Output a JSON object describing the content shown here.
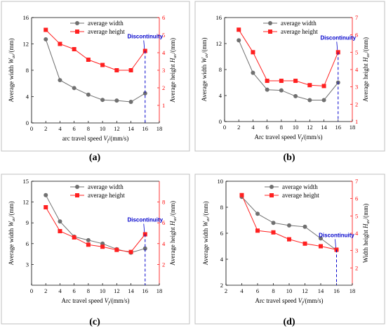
{
  "chart_data": [
    {
      "type": "line",
      "panel_label": "(a)",
      "x": [
        2,
        4,
        6,
        8,
        10,
        12,
        14,
        16
      ],
      "xlim": [
        0,
        18
      ],
      "xticks": [
        0,
        2,
        4,
        6,
        8,
        10,
        12,
        14,
        16,
        18
      ],
      "xlabel": "arc travel speed V_f/(mm/s)",
      "ylabel": "Average width W_av/(mm)",
      "y2label": "Average height H_av/(mm)",
      "ylim": [
        0,
        16
      ],
      "yticks": [
        0,
        4,
        8,
        12,
        16
      ],
      "y2lim": [
        0,
        6
      ],
      "y2ticks": [
        1,
        2,
        3,
        4,
        5,
        6
      ],
      "series": [
        {
          "name": "average width",
          "axis": "left",
          "color": "#707070",
          "marker": "circle",
          "values": [
            12.7,
            6.5,
            5.3,
            4.3,
            3.5,
            3.4,
            3.2,
            4.5
          ]
        },
        {
          "name": "average height",
          "axis": "right",
          "color": "#ff2020",
          "marker": "square",
          "values": [
            5.3,
            4.5,
            4.2,
            3.6,
            3.3,
            3.0,
            3.0,
            4.1
          ]
        }
      ],
      "annotation": {
        "text": "Discontinuity",
        "x": 16
      },
      "legend_position": "top-center",
      "grid": false
    },
    {
      "type": "line",
      "panel_label": "(b)",
      "x": [
        2,
        4,
        6,
        8,
        10,
        12,
        14,
        16
      ],
      "xlim": [
        0,
        18
      ],
      "xticks": [
        0,
        2,
        4,
        6,
        8,
        10,
        12,
        14,
        16,
        18
      ],
      "xlabel": "Arc travel speed V_f/(mm/s)",
      "ylabel": "Average width W_av/(mm)",
      "y2label": "Average height H_av/(mm)",
      "ylim": [
        0,
        16
      ],
      "yticks": [
        0,
        4,
        8,
        12,
        16
      ],
      "y2lim": [
        1,
        7
      ],
      "y2ticks": [
        1,
        2,
        3,
        4,
        5,
        6,
        7
      ],
      "series": [
        {
          "name": "average width",
          "axis": "left",
          "color": "#707070",
          "marker": "circle",
          "values": [
            12.5,
            7.5,
            4.9,
            4.8,
            3.9,
            3.3,
            3.3,
            6.0
          ]
        },
        {
          "name": "average height",
          "axis": "right",
          "color": "#ff2020",
          "marker": "square",
          "values": [
            6.3,
            5.0,
            3.35,
            3.35,
            3.35,
            3.1,
            3.05,
            5.0
          ]
        }
      ],
      "annotation": {
        "text": "Discontinuity",
        "x": 16
      },
      "legend_position": "top-center",
      "grid": false
    },
    {
      "type": "line",
      "panel_label": "(c)",
      "x": [
        2,
        4,
        6,
        8,
        10,
        12,
        14,
        16
      ],
      "xlim": [
        0,
        18
      ],
      "xticks": [
        0,
        2,
        4,
        6,
        8,
        10,
        12,
        14,
        16,
        18
      ],
      "xlabel": "Arc travel speed V_f/(mm/s)",
      "ylabel": "Average width W_av/(mm)",
      "y2label": "Average height H_av/(mm)",
      "ylim": [
        0,
        15
      ],
      "yticks": [
        3,
        6,
        9,
        12,
        15
      ],
      "y2lim": [
        0,
        10
      ],
      "y2ticks": [
        2,
        4,
        6,
        8
      ],
      "series": [
        {
          "name": "average width",
          "axis": "left",
          "color": "#707070",
          "marker": "circle",
          "values": [
            13.0,
            9.2,
            7.0,
            6.5,
            6.0,
            5.2,
            4.7,
            5.3
          ]
        },
        {
          "name": "average height",
          "axis": "right",
          "color": "#ff2020",
          "marker": "square",
          "values": [
            7.5,
            5.2,
            4.6,
            3.9,
            3.7,
            3.4,
            3.2,
            4.9
          ]
        }
      ],
      "annotation": {
        "text": "Discontinuity",
        "x": 16
      },
      "legend_position": "top-center",
      "grid": false
    },
    {
      "type": "line",
      "panel_label": "(d)",
      "x": [
        4,
        6,
        8,
        10,
        12,
        14,
        16
      ],
      "xlim": [
        2,
        18
      ],
      "xticks": [
        2,
        4,
        6,
        8,
        10,
        12,
        14,
        16,
        18
      ],
      "xlabel": "Arc travel speed V_f/(mm/s)",
      "ylabel": "Average width W_av/(mm)",
      "y2label": "Width height H_av/(mm)",
      "ylim": [
        2,
        10
      ],
      "yticks": [
        2,
        4,
        6,
        8,
        10
      ],
      "y2lim": [
        1,
        7
      ],
      "y2ticks": [
        2,
        3,
        4,
        5,
        6,
        7
      ],
      "series": [
        {
          "name": "average width",
          "axis": "left",
          "color": "#707070",
          "marker": "circle",
          "values": [
            8.8,
            7.5,
            6.8,
            6.6,
            6.5,
            5.6,
            4.7
          ]
        },
        {
          "name": "average height",
          "axis": "right",
          "color": "#ff2020",
          "marker": "square",
          "values": [
            6.2,
            4.15,
            4.05,
            3.65,
            3.4,
            3.25,
            3.05
          ]
        }
      ],
      "annotation": {
        "text": "Discontinuity",
        "x": 16
      },
      "legend_position": "top-center",
      "grid": false
    }
  ]
}
